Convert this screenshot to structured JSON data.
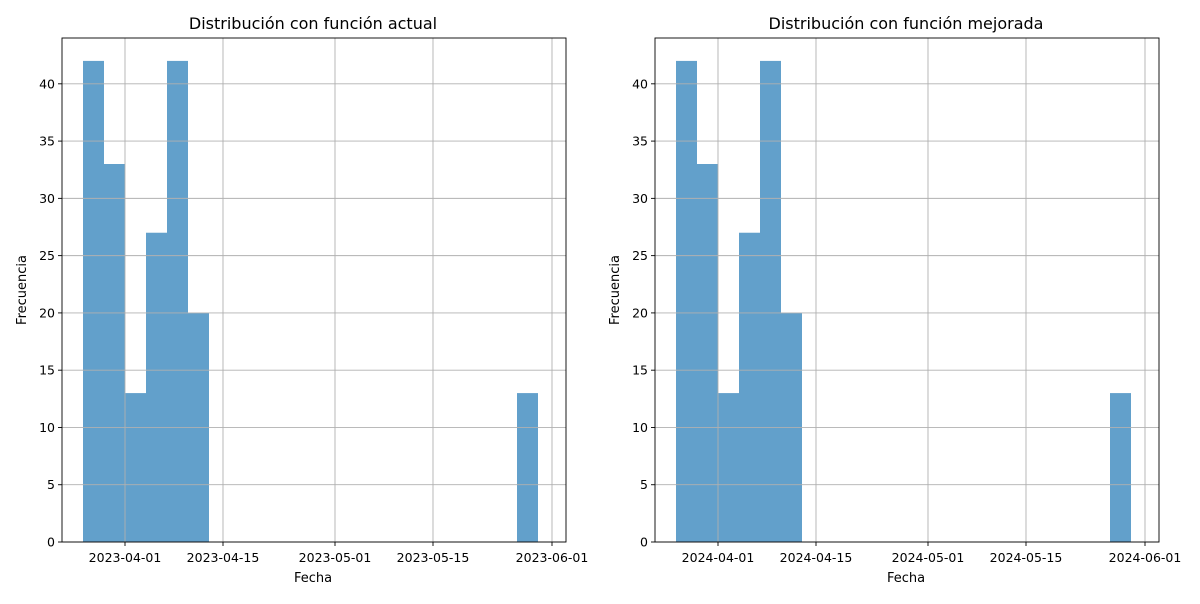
{
  "colors": {
    "bar": "#62a0cb"
  },
  "chart_data": [
    {
      "type": "bar",
      "title": "Distribución con función actual",
      "xlabel": "Fecha",
      "ylabel": "Frecuencia",
      "x_type": "date",
      "xlim": [
        "2023-03-23",
        "2023-06-03"
      ],
      "ylim": [
        0,
        44
      ],
      "grid": true,
      "xticks": [
        "2023-04-01",
        "2023-04-15",
        "2023-05-01",
        "2023-05-15",
        "2023-06-01"
      ],
      "yticks": [
        0,
        5,
        10,
        15,
        20,
        25,
        30,
        35,
        40
      ],
      "bins": [
        {
          "start": "2023-03-26",
          "end": "2023-03-29",
          "value": 42
        },
        {
          "start": "2023-03-29",
          "end": "2023-04-01",
          "value": 33
        },
        {
          "start": "2023-04-01",
          "end": "2023-04-04",
          "value": 13
        },
        {
          "start": "2023-04-04",
          "end": "2023-04-07",
          "value": 27
        },
        {
          "start": "2023-04-07",
          "end": "2023-04-10",
          "value": 42
        },
        {
          "start": "2023-04-10",
          "end": "2023-04-13",
          "value": 20
        },
        {
          "start": "2023-05-27",
          "end": "2023-05-30",
          "value": 13
        }
      ]
    },
    {
      "type": "bar",
      "title": "Distribución con función mejorada",
      "xlabel": "Fecha",
      "ylabel": "Frecuencia",
      "x_type": "date",
      "xlim": [
        "2024-03-23",
        "2024-06-03"
      ],
      "ylim": [
        0,
        44
      ],
      "grid": true,
      "xticks": [
        "2024-04-01",
        "2024-04-15",
        "2024-05-01",
        "2024-05-15",
        "2024-06-01"
      ],
      "yticks": [
        0,
        5,
        10,
        15,
        20,
        25,
        30,
        35,
        40
      ],
      "bins": [
        {
          "start": "2024-03-26",
          "end": "2024-03-29",
          "value": 42
        },
        {
          "start": "2024-03-29",
          "end": "2024-04-01",
          "value": 33
        },
        {
          "start": "2024-04-01",
          "end": "2024-04-04",
          "value": 13
        },
        {
          "start": "2024-04-04",
          "end": "2024-04-07",
          "value": 27
        },
        {
          "start": "2024-04-07",
          "end": "2024-04-10",
          "value": 42
        },
        {
          "start": "2024-04-10",
          "end": "2024-04-13",
          "value": 20
        },
        {
          "start": "2024-05-27",
          "end": "2024-05-30",
          "value": 13
        }
      ]
    }
  ]
}
